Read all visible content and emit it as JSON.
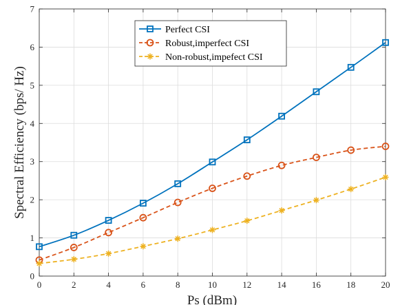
{
  "chart_data": {
    "type": "line",
    "xlabel": "Ps (dBm)",
    "ylabel": "Spectral Efficiency (bps/ Hz)",
    "xlim": [
      0,
      20
    ],
    "ylim": [
      0,
      7
    ],
    "x_ticks": [
      0,
      2,
      4,
      6,
      8,
      10,
      12,
      14,
      16,
      18,
      20
    ],
    "y_ticks": [
      0,
      1,
      2,
      3,
      4,
      5,
      6,
      7
    ],
    "grid": true,
    "legend_position": "top-center",
    "x": [
      0,
      2,
      4,
      6,
      8,
      10,
      12,
      14,
      16,
      18,
      20
    ],
    "series": [
      {
        "name": "Perfect CSI",
        "color": "#0072BD",
        "marker": "square",
        "line_style": "solid",
        "values": [
          0.77,
          1.07,
          1.46,
          1.91,
          2.42,
          2.99,
          3.57,
          4.19,
          4.83,
          5.47,
          6.12
        ]
      },
      {
        "name": "Robust,imperfect CSI",
        "color": "#D95319",
        "marker": "circle",
        "line_style": "dashed",
        "values": [
          0.42,
          0.75,
          1.14,
          1.53,
          1.93,
          2.3,
          2.62,
          2.9,
          3.11,
          3.3,
          3.4
        ]
      },
      {
        "name": "Non-robust,impefect CSI",
        "color": "#EDB120",
        "marker": "asterisk",
        "line_style": "dashed",
        "values": [
          0.33,
          0.44,
          0.59,
          0.78,
          0.98,
          1.21,
          1.45,
          1.72,
          1.99,
          2.28,
          2.59
        ]
      }
    ]
  }
}
